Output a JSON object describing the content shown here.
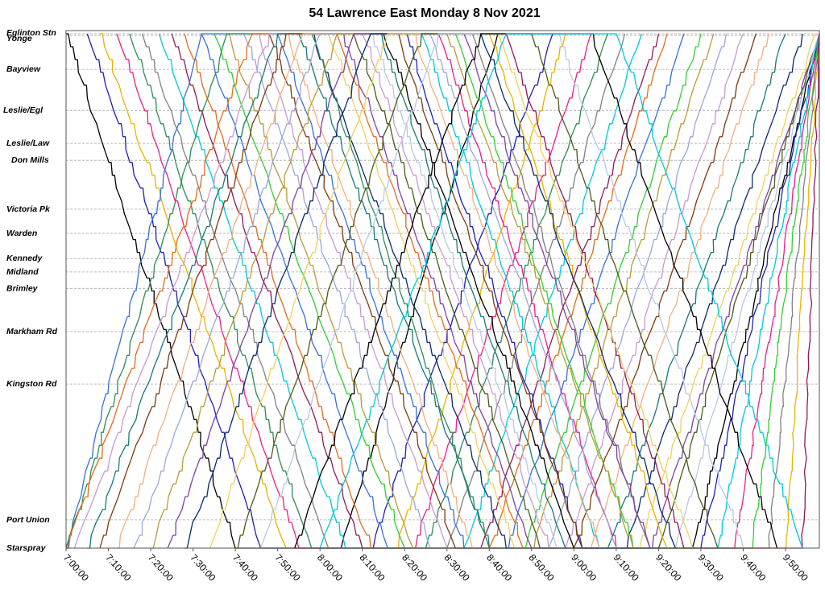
{
  "chart_data": {
    "type": "line",
    "title": "54 Lawrence East Monday 8 Nov 2021",
    "xlabel": "",
    "ylabel": "",
    "x_unit": "time of day",
    "x_ticks": [
      "7:00:00",
      "7:10:00",
      "7:20:00",
      "7:30:00",
      "7:40:00",
      "7:50:00",
      "8:00:00",
      "8:10:00",
      "8:20:00",
      "8:30:00",
      "8:40:00",
      "8:50:00",
      "9:00:00",
      "9:10:00",
      "9:20:00",
      "9:30:00",
      "9:40:00",
      "9:50:00"
    ],
    "xlim": [
      "7:00:00",
      "9:58:00"
    ],
    "grid": true,
    "legend": "none",
    "stops": [
      {
        "name": "Eglinton Stn",
        "pos": 0.0
      },
      {
        "name": "Yonge",
        "pos": 0.3
      },
      {
        "name": "Bayview",
        "pos": 6.9
      },
      {
        "name": "Leslie/Egl",
        "pos": 14.9
      },
      {
        "name": "Leslie/Law",
        "pos": 21.3
      },
      {
        "name": "Don Mills",
        "pos": 24.6
      },
      {
        "name": "Victoria Pk",
        "pos": 34.1
      },
      {
        "name": "Warden",
        "pos": 38.8
      },
      {
        "name": "Kennedy",
        "pos": 43.7
      },
      {
        "name": "Midland",
        "pos": 46.3
      },
      {
        "name": "Brimley",
        "pos": 49.5
      },
      {
        "name": "Markham Rd",
        "pos": 57.9
      },
      {
        "name": "Kingston Rd",
        "pos": 68.1
      },
      {
        "name": "Port Union",
        "pos": 94.5
      },
      {
        "name": "Starspray",
        "pos": 100.0
      }
    ],
    "series": [
      {
        "color": "#000000",
        "eastbound": [
          "7:00:00",
          "7:40:00"
        ],
        "westbound": [
          "8:05:00",
          "8:42:00"
        ]
      },
      {
        "color": "#1f1fb4",
        "eastbound": [
          "7:05:00",
          "7:46:00"
        ],
        "westbound": [
          "8:12:00",
          "8:55:00"
        ]
      },
      {
        "color": "#e8b400",
        "eastbound": [
          "7:08:00",
          "7:52:00"
        ],
        "westbound": [
          "8:18:00",
          "8:58:00"
        ]
      },
      {
        "color": "#e91e8c",
        "eastbound": [
          "7:12:00",
          "7:55:00"
        ],
        "westbound": [
          "8:22:00",
          "9:04:00"
        ]
      },
      {
        "color": "#2e8b57",
        "eastbound": [
          "7:15:00",
          "7:58:00"
        ],
        "westbound": [
          "8:25:00",
          "9:08:00"
        ]
      },
      {
        "color": "#808080",
        "eastbound": [
          "7:18:00",
          "8:02:00"
        ],
        "westbound": [
          "8:30:00",
          "9:12:00"
        ]
      },
      {
        "color": "#00c8d8",
        "eastbound": [
          "7:22:00",
          "8:06:00"
        ],
        "westbound": [
          "8:34:00",
          "9:16:00"
        ]
      },
      {
        "color": "#8b1a5a",
        "eastbound": [
          "7:25:00",
          "8:10:00"
        ],
        "westbound": [
          "8:38:00",
          "9:20:00"
        ]
      },
      {
        "color": "#e06c1a",
        "eastbound": [
          "7:28:00",
          "8:12:00"
        ],
        "westbound": [
          "8:40:00",
          "9:22:00"
        ]
      },
      {
        "color": "#3a6fd8",
        "eastbound": [
          "7:32:00",
          "8:16:00"
        ],
        "westbound": [
          "8:44:00",
          "9:26:00"
        ]
      },
      {
        "color": "#33cc33",
        "eastbound": [
          "7:35:00",
          "8:20:00"
        ],
        "westbound": [
          "8:48:00",
          "9:30:00"
        ]
      },
      {
        "color": "#b89a3a",
        "eastbound": [
          "7:38:00",
          "8:22:00"
        ],
        "westbound": [
          "8:50:00",
          "9:33:00"
        ]
      },
      {
        "color": "#9aa6d8",
        "eastbound": [
          "7:42:00",
          "8:26:00"
        ],
        "westbound": [
          "8:54:00",
          "9:36:00"
        ]
      },
      {
        "color": "#c89ad0",
        "eastbound": [
          "7:45:00",
          "8:30:00"
        ],
        "westbound": [
          "8:58:00",
          "9:40:00"
        ]
      },
      {
        "color": "#7a3b10",
        "eastbound": [
          "7:48:00",
          "8:32:00"
        ],
        "westbound": [
          "9:00:00",
          "9:43:00"
        ]
      },
      {
        "color": "#f0b080",
        "eastbound": [
          "7:52:00",
          "8:36:00"
        ],
        "westbound": [
          "9:04:00",
          "9:46:00"
        ]
      },
      {
        "color": "#1a7878",
        "eastbound": [
          "7:55:00",
          "8:40:00"
        ],
        "westbound": [
          "9:08:00",
          "9:50:00"
        ]
      },
      {
        "color": "#0a2a6a",
        "eastbound": [
          "7:58:00",
          "8:44:00"
        ],
        "westbound": [
          "9:12:00",
          "9:54:00"
        ]
      },
      {
        "color": "#f0d060",
        "eastbound": [
          "8:02:00",
          "8:46:00"
        ],
        "westbound": [
          "9:15:00",
          "9:57:00"
        ]
      },
      {
        "color": "#8040a0",
        "eastbound": [
          "8:05:00",
          "8:50:00"
        ],
        "westbound": [
          "9:18:00",
          "9:58:00"
        ]
      },
      {
        "color": "#4a5a1a",
        "eastbound": [
          "8:08:00",
          "8:52:00"
        ],
        "westbound": [
          "9:20:00",
          "9:58:00"
        ]
      },
      {
        "color": "#b8c8e8",
        "eastbound": [
          "8:12:00",
          "8:56:00"
        ],
        "westbound": [
          "9:24:00",
          "9:58:00"
        ]
      },
      {
        "color": "#000000",
        "eastbound": [
          "8:15:00",
          "9:00:00"
        ],
        "westbound": [
          "9:28:00",
          "9:58:00"
        ]
      },
      {
        "color": "#1f1fb4",
        "eastbound": [
          "8:20:00",
          "9:02:00"
        ],
        "westbound": [
          "9:30:00",
          "9:58:00"
        ]
      },
      {
        "color": "#00c8d8",
        "eastbound": [
          "8:24:00",
          "9:06:00"
        ],
        "westbound": [
          "9:34:00",
          "9:58:00"
        ]
      },
      {
        "color": "#e91e8c",
        "eastbound": [
          "8:28:00",
          "9:10:00"
        ],
        "westbound": [
          "9:38:00",
          "9:58:00"
        ]
      },
      {
        "color": "#33cc33",
        "eastbound": [
          "8:32:00",
          "9:14:00"
        ],
        "westbound": [
          "9:42:00",
          "9:58:00"
        ]
      },
      {
        "color": "#808080",
        "eastbound": [
          "8:36:00",
          "9:18:00"
        ],
        "westbound": [
          "9:46:00",
          "9:58:00"
        ]
      },
      {
        "color": "#e8b400",
        "eastbound": [
          "8:40:00",
          "9:22:00"
        ],
        "westbound": [
          "9:50:00",
          "9:58:00"
        ]
      },
      {
        "color": "#8b1a5a",
        "eastbound": [
          "8:44:00",
          "9:26:00"
        ],
        "westbound": [
          "9:54:00",
          "9:58:00"
        ]
      },
      {
        "color": "#3a6fd8",
        "westbound": [
          "7:00:00",
          "7:32:00"
        ],
        "eastbound": [
          "7:50:00",
          "8:34:00"
        ]
      },
      {
        "color": "#2e8b57",
        "westbound": [
          "7:00:00",
          "7:38:00"
        ],
        "eastbound": [
          "7:58:00",
          "8:40:00"
        ]
      },
      {
        "color": "#e06c1a",
        "westbound": [
          "7:00:00",
          "7:44:00"
        ],
        "eastbound": [
          "8:04:00",
          "8:48:00"
        ]
      },
      {
        "color": "#c89ad0",
        "westbound": [
          "7:02:00",
          "7:48:00"
        ],
        "eastbound": [
          "8:10:00",
          "8:54:00"
        ]
      },
      {
        "color": "#1a7878",
        "westbound": [
          "7:05:00",
          "7:50:00"
        ],
        "eastbound": [
          "8:14:00",
          "8:58:00"
        ]
      },
      {
        "color": "#7a3b10",
        "westbound": [
          "7:08:00",
          "7:52:00"
        ],
        "eastbound": [
          "8:18:00",
          "9:02:00"
        ]
      },
      {
        "color": "#f0b080",
        "westbound": [
          "7:12:00",
          "7:56:00"
        ],
        "eastbound": [
          "8:22:00",
          "9:06:00"
        ]
      },
      {
        "color": "#9aa6d8",
        "westbound": [
          "7:16:00",
          "8:00:00"
        ],
        "eastbound": [
          "8:26:00",
          "9:10:00"
        ]
      },
      {
        "color": "#b89a3a",
        "westbound": [
          "7:20:00",
          "8:04:00"
        ],
        "eastbound": [
          "8:30:00",
          "9:14:00"
        ]
      },
      {
        "color": "#8040a0",
        "westbound": [
          "7:24:00",
          "8:08:00"
        ],
        "eastbound": [
          "8:34:00",
          "9:18:00"
        ]
      },
      {
        "color": "#0a2a6a",
        "westbound": [
          "7:28:00",
          "8:12:00"
        ],
        "eastbound": [
          "8:38:00",
          "9:24:00"
        ]
      },
      {
        "color": "#f0d060",
        "westbound": [
          "7:34:00",
          "8:16:00"
        ],
        "eastbound": [
          "8:42:00",
          "9:28:00"
        ]
      },
      {
        "color": "#4a5a1a",
        "westbound": [
          "7:40:00",
          "8:24:00"
        ],
        "eastbound": [
          "8:50:00",
          "9:34:00"
        ]
      },
      {
        "color": "#b8c8e8",
        "westbound": [
          "7:46:00",
          "8:28:00"
        ],
        "eastbound": [
          "8:56:00",
          "9:40:00"
        ]
      },
      {
        "color": "#000000",
        "westbound": [
          "7:54:00",
          "8:38:00"
        ],
        "eastbound": [
          "9:04:00",
          "9:48:00"
        ]
      },
      {
        "color": "#00c8d8",
        "westbound": [
          "8:00:00",
          "8:44:00"
        ],
        "eastbound": [
          "9:10:00",
          "9:54:00"
        ]
      }
    ]
  }
}
